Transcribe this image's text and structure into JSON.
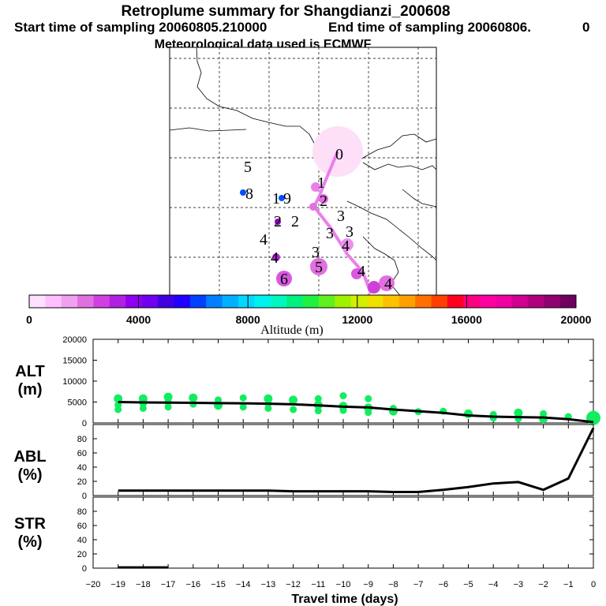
{
  "header": {
    "title": "Retroplume summary for Shangdianzi_200608",
    "start": "Start time of sampling 20060805.210000",
    "end": "End time of sampling 20060806.",
    "end_tail": "0",
    "met": "Meteorological data used is ECMWF"
  },
  "map": {
    "labels": [
      {
        "text": "0",
        "alt": 1200
      },
      {
        "text": "1",
        "alt": 1200
      },
      {
        "text": "2",
        "alt": 1800
      },
      {
        "text": "2",
        "alt": 3000
      },
      {
        "text": "3",
        "alt": 4000
      },
      {
        "text": "3",
        "alt": 4200
      },
      {
        "text": "4",
        "alt": 4500
      },
      {
        "text": "4",
        "alt": 3800
      },
      {
        "text": "5",
        "alt": 4200
      },
      {
        "text": "6",
        "alt": 5000
      },
      {
        "text": "9",
        "alt": 5400
      },
      {
        "text": "8",
        "alt": 4600
      },
      {
        "text": "5",
        "alt": 0
      },
      {
        "text": "1",
        "alt": 0
      },
      {
        "text": "2",
        "alt": 0
      },
      {
        "text": "3",
        "alt": 0
      },
      {
        "text": "4",
        "alt": 0
      },
      {
        "text": "3",
        "alt": 0
      },
      {
        "text": "4",
        "alt": 0
      },
      {
        "text": "4",
        "alt": 0
      }
    ]
  },
  "colorbar": {
    "label": "Altitude (m)",
    "ticks": [
      "0",
      "4000",
      "8000",
      "12000",
      "16000",
      "20000"
    ],
    "colors": [
      "#ffe0ff",
      "#ffc0ff",
      "#f0a0f0",
      "#e070e0",
      "#d040e0",
      "#b020e0",
      "#9000f0",
      "#7000f0",
      "#4000e0",
      "#2000ff",
      "#0040ff",
      "#0080ff",
      "#00b0ff",
      "#00d8ff",
      "#00f0f0",
      "#00f8c0",
      "#00f080",
      "#20f040",
      "#60f020",
      "#a0f000",
      "#d0f000",
      "#f0e000",
      "#ffc000",
      "#ffa000",
      "#ff7000",
      "#ff4000",
      "#ff0020",
      "#ff0080",
      "#ff00a0",
      "#f000a0",
      "#d00090",
      "#b00080",
      "#900070",
      "#700060"
    ]
  },
  "alt_panel": {
    "label_top": "ALT",
    "label_bottom": "(m)",
    "yticks": [
      "0",
      "5000",
      "10000",
      "15000",
      "20000"
    ]
  },
  "abl_panel": {
    "label_top": "ABL",
    "label_bottom": "(%)",
    "yticks": [
      "0",
      "20",
      "40",
      "60",
      "80"
    ]
  },
  "str_panel": {
    "label_top": "STR",
    "label_bottom": "(%)",
    "yticks": [
      "0",
      "20",
      "40",
      "60",
      "80"
    ]
  },
  "xaxis": {
    "label": "Travel time (days)",
    "ticks": [
      "−20",
      "−19",
      "−18",
      "−17",
      "−16",
      "−15",
      "−14",
      "−13",
      "−12",
      "−11",
      "−10",
      "−9",
      "−8",
      "−7",
      "−6",
      "−5",
      "−4",
      "−3",
      "−2",
      "−1",
      "0"
    ]
  },
  "chart_data": [
    {
      "type": "line",
      "title": "ALT (m)",
      "xlabel": "Travel time (days)",
      "ylabel": "ALT (m)",
      "xlim": [
        -20,
        0
      ],
      "ylim": [
        0,
        20000
      ],
      "x": [
        -19,
        -18,
        -17,
        -16,
        -15,
        -14,
        -13,
        -12,
        -11,
        -10,
        -9,
        -8,
        -7,
        -6,
        -5,
        -4,
        -3,
        -2,
        -1,
        0
      ],
      "values": [
        5000,
        4900,
        4850,
        4800,
        4750,
        4700,
        4600,
        4450,
        4200,
        3900,
        3700,
        3200,
        2800,
        2400,
        1800,
        1500,
        1400,
        1300,
        900,
        200
      ],
      "scatter_x": [
        -19,
        -19,
        -19,
        -18,
        -18,
        -18,
        -17,
        -17,
        -17,
        -16,
        -16,
        -15,
        -15,
        -14,
        -14,
        -13,
        -13,
        -13,
        -12,
        -12,
        -11,
        -11,
        -11,
        -10,
        -10,
        -10,
        -9,
        -9,
        -9,
        -8,
        -8,
        -7,
        -6,
        -5,
        -4,
        -4,
        -3,
        -3,
        -2,
        -2,
        -1,
        0
      ],
      "scatter_y": [
        5800,
        4300,
        3200,
        5800,
        4600,
        3500,
        6200,
        5000,
        3800,
        6000,
        4500,
        5500,
        4200,
        6000,
        3800,
        5800,
        4600,
        3500,
        5500,
        3200,
        5800,
        4300,
        2900,
        6500,
        4000,
        3000,
        5800,
        3600,
        2500,
        3500,
        2800,
        2700,
        2800,
        2200,
        2000,
        1200,
        2400,
        1000,
        2200,
        1000,
        1500,
        1200
      ]
    },
    {
      "type": "line",
      "title": "ABL (%)",
      "xlabel": "Travel time (days)",
      "ylabel": "ABL (%)",
      "xlim": [
        -20,
        0
      ],
      "ylim": [
        0,
        100
      ],
      "x": [
        -19,
        -18,
        -17,
        -16,
        -15,
        -14,
        -13,
        -12,
        -11,
        -10,
        -9,
        -8,
        -7,
        -6,
        -5,
        -4,
        -3,
        -2,
        -1,
        0
      ],
      "values": [
        7,
        7,
        7,
        7,
        7,
        7,
        7,
        6,
        6,
        6,
        6,
        5,
        5,
        8,
        12,
        17,
        19,
        8,
        24,
        95
      ]
    },
    {
      "type": "line",
      "title": "STR (%)",
      "xlabel": "Travel time (days)",
      "ylabel": "STR (%)",
      "xlim": [
        -20,
        0
      ],
      "ylim": [
        0,
        100
      ],
      "x": [
        -19,
        -18,
        -17
      ],
      "values": [
        1,
        1,
        1
      ]
    }
  ]
}
